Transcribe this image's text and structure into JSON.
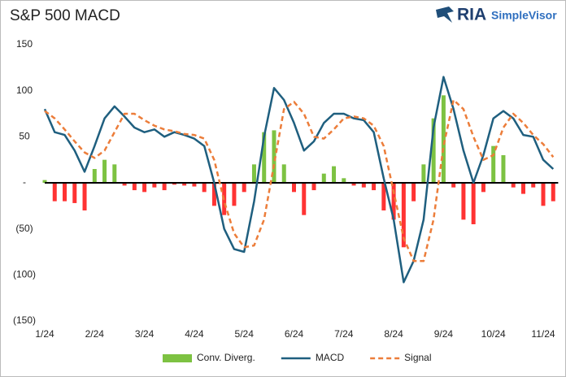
{
  "logo": {
    "brand": "RIA",
    "product": "SimpleVisor"
  },
  "chart_data": {
    "type": "line",
    "title": "S&P 500 MACD",
    "x": [
      0,
      0.2,
      0.4,
      0.6,
      0.8,
      1,
      1.2,
      1.4,
      1.6,
      1.8,
      2,
      2.2,
      2.4,
      2.6,
      2.8,
      3,
      3.2,
      3.4,
      3.6,
      3.8,
      4,
      4.2,
      4.4,
      4.6,
      4.8,
      5,
      5.2,
      5.4,
      5.6,
      5.8,
      6,
      6.2,
      6.4,
      6.6,
      6.8,
      7,
      7.2,
      7.4,
      7.6,
      7.8,
      8,
      8.2,
      8.4,
      8.6,
      8.8,
      9,
      9.2,
      9.4,
      9.6,
      9.8,
      10,
      10.2
    ],
    "series": [
      {
        "name": "Conv. Diverg.",
        "type": "bar",
        "color": "#7dc242",
        "negative_color": "#ff3333",
        "values": [
          3,
          -20,
          -20,
          -22,
          -30,
          15,
          25,
          20,
          -3,
          -8,
          -10,
          -5,
          -8,
          -2,
          -3,
          -4,
          -10,
          -25,
          -35,
          -25,
          -10,
          20,
          55,
          57,
          20,
          -10,
          -35,
          -8,
          10,
          18,
          5,
          -3,
          -5,
          -8,
          -30,
          -40,
          -70,
          -20,
          20,
          70,
          95,
          -5,
          -40,
          -45,
          -10,
          40,
          30,
          -5,
          -12,
          -5,
          -25,
          -20
        ]
      },
      {
        "name": "MACD",
        "type": "line",
        "color": "#1f5f7f",
        "values": [
          80,
          55,
          52,
          35,
          12,
          40,
          70,
          83,
          72,
          60,
          55,
          58,
          50,
          55,
          52,
          48,
          40,
          0,
          -50,
          -72,
          -75,
          -20,
          50,
          103,
          90,
          65,
          35,
          45,
          65,
          75,
          75,
          70,
          68,
          55,
          5,
          -40,
          -108,
          -85,
          -40,
          60,
          115,
          80,
          35,
          0,
          30,
          70,
          78,
          70,
          52,
          50,
          25,
          15
        ]
      },
      {
        "name": "Signal",
        "type": "line",
        "dashed": true,
        "color": "#ec7d3a",
        "values": [
          78,
          70,
          58,
          45,
          33,
          27,
          35,
          55,
          75,
          75,
          68,
          62,
          58,
          56,
          53,
          52,
          48,
          25,
          -20,
          -55,
          -70,
          -68,
          -40,
          20,
          80,
          88,
          75,
          50,
          48,
          58,
          70,
          72,
          70,
          62,
          40,
          -10,
          -60,
          -85,
          -85,
          -40,
          40,
          90,
          80,
          50,
          25,
          30,
          60,
          75,
          65,
          52,
          42,
          28
        ]
      }
    ],
    "xlim": [
      0,
      10.3
    ],
    "xticks": [
      {
        "value": 0,
        "label": "1/24"
      },
      {
        "value": 1,
        "label": "2/24"
      },
      {
        "value": 2,
        "label": "3/24"
      },
      {
        "value": 3,
        "label": "4/24"
      },
      {
        "value": 4,
        "label": "5/24"
      },
      {
        "value": 5,
        "label": "6/24"
      },
      {
        "value": 6,
        "label": "7/24"
      },
      {
        "value": 7,
        "label": "8/24"
      },
      {
        "value": 8,
        "label": "9/24"
      },
      {
        "value": 9,
        "label": "10/24"
      },
      {
        "value": 10,
        "label": "11/24"
      }
    ],
    "ylim": [
      -150,
      150
    ],
    "yticks": [
      150,
      100,
      50,
      {
        "value": 0,
        "label": "-"
      },
      {
        "value": -50,
        "label": "(50)"
      },
      {
        "value": -100,
        "label": "(100)"
      },
      {
        "value": -150,
        "label": "(150)"
      }
    ],
    "legend": "bottom"
  }
}
